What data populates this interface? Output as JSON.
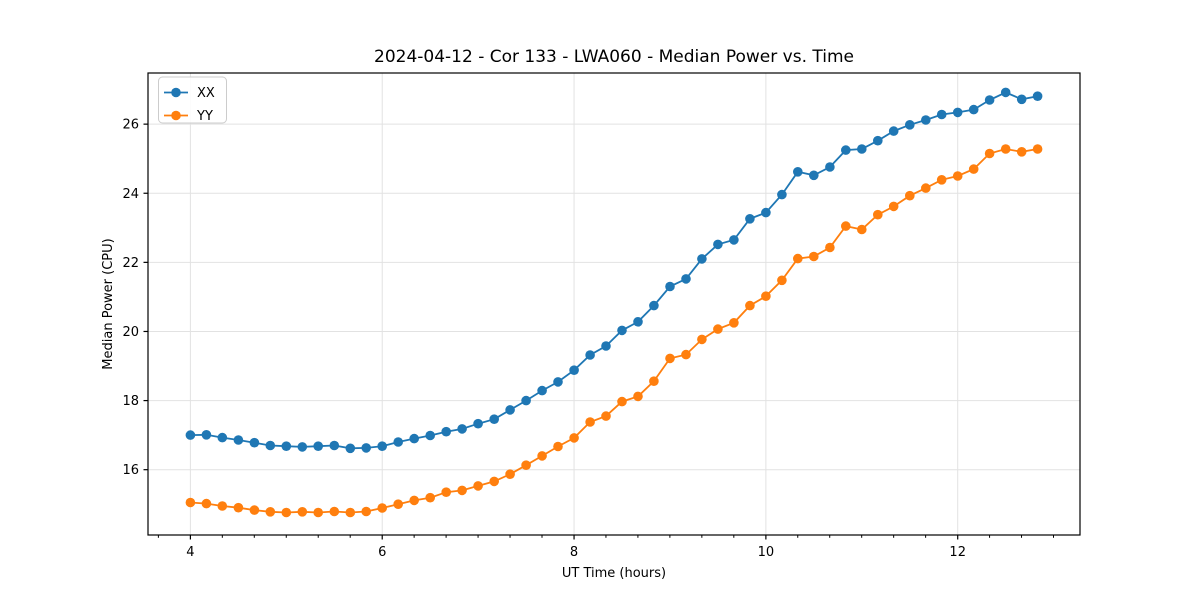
{
  "chart_data": {
    "type": "line",
    "title": "2024-04-12 - Cor 133 - LWA060 - Median Power vs. Time",
    "xlabel": "UT Time (hours)",
    "ylabel": "Median Power (CPU)",
    "xlim": [
      3.558,
      13.275
    ],
    "ylim": [
      14.11,
      27.48
    ],
    "x_major_ticks": [
      4,
      6,
      8,
      10,
      12
    ],
    "x_minor_tick_step": 0.3333,
    "y_major_ticks": [
      16,
      18,
      20,
      22,
      24,
      26
    ],
    "grid": true,
    "grid_color": "#e2e2e2",
    "legend_position": "upper-left",
    "x": [
      4.0,
      4.167,
      4.333,
      4.5,
      4.667,
      4.833,
      5.0,
      5.167,
      5.333,
      5.5,
      5.667,
      5.833,
      6.0,
      6.167,
      6.333,
      6.5,
      6.667,
      6.833,
      7.0,
      7.167,
      7.333,
      7.5,
      7.667,
      7.833,
      8.0,
      8.167,
      8.333,
      8.5,
      8.667,
      8.833,
      9.0,
      9.167,
      9.333,
      9.5,
      9.667,
      9.833,
      10.0,
      10.167,
      10.333,
      10.5,
      10.667,
      10.833,
      11.0,
      11.167,
      11.333,
      11.5,
      11.667,
      11.833,
      12.0,
      12.167,
      12.333,
      12.5,
      12.667,
      12.833
    ],
    "series": [
      {
        "name": "XX",
        "color": "#1f77b4",
        "values": [
          17.0,
          17.01,
          16.93,
          16.86,
          16.78,
          16.7,
          16.68,
          16.66,
          16.68,
          16.7,
          16.62,
          16.63,
          16.68,
          16.8,
          16.9,
          16.99,
          17.1,
          17.18,
          17.33,
          17.46,
          17.73,
          18.0,
          18.29,
          18.54,
          18.88,
          19.32,
          19.58,
          20.03,
          20.28,
          20.75,
          21.3,
          21.52,
          22.1,
          22.52,
          22.65,
          23.26,
          23.44,
          23.96,
          24.62,
          24.52,
          24.76,
          25.25,
          25.28,
          25.52,
          25.8,
          25.98,
          26.12,
          26.28,
          26.34,
          26.42,
          26.7,
          26.92,
          26.72,
          26.81
        ]
      },
      {
        "name": "YY",
        "color": "#ff7f0e",
        "values": [
          15.05,
          15.02,
          14.95,
          14.9,
          14.83,
          14.78,
          14.76,
          14.78,
          14.76,
          14.79,
          14.76,
          14.79,
          14.89,
          15.0,
          15.11,
          15.19,
          15.35,
          15.4,
          15.53,
          15.66,
          15.87,
          16.13,
          16.4,
          16.67,
          16.92,
          17.38,
          17.55,
          17.97,
          18.12,
          18.56,
          19.22,
          19.33,
          19.77,
          20.07,
          20.25,
          20.75,
          21.02,
          21.48,
          22.11,
          22.17,
          22.43,
          23.05,
          22.95,
          23.38,
          23.62,
          23.93,
          24.15,
          24.39,
          24.5,
          24.7,
          25.15,
          25.28,
          25.2,
          25.28
        ]
      }
    ]
  }
}
